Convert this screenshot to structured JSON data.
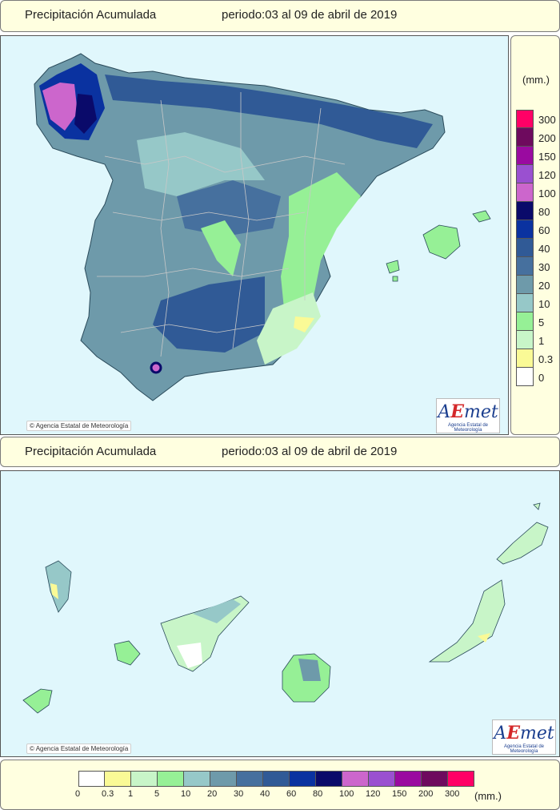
{
  "top_title": {
    "label": "Precipitación Acumulada",
    "period": "periodo:03 al 09 de abril de 2019"
  },
  "canary_title": {
    "label": "Precipitación Acumulada",
    "period": "periodo:03 al 09 de abril de 2019"
  },
  "credit": "Agencia Estatal de Meteorología",
  "logo": {
    "mark_a": "A",
    "mark_e": "E",
    "mark_rest": "met",
    "sub": "Agencia Estatal de Meteorología"
  },
  "legend": {
    "unit": "(mm.)",
    "bins": [
      {
        "label": "300",
        "color": "#ff0066"
      },
      {
        "label": "200",
        "color": "#6e0a5e"
      },
      {
        "label": "150",
        "color": "#9a0aa0"
      },
      {
        "label": "120",
        "color": "#9a50d0"
      },
      {
        "label": "100",
        "color": "#cc66cc"
      },
      {
        "label": "80",
        "color": "#0a0a6a"
      },
      {
        "label": "60",
        "color": "#0a32a0"
      },
      {
        "label": "40",
        "color": "#305a96"
      },
      {
        "label": "30",
        "color": "#46709e"
      },
      {
        "label": "20",
        "color": "#6e9aaa"
      },
      {
        "label": "10",
        "color": "#96c8c8"
      },
      {
        "label": "5",
        "color": "#96f096"
      },
      {
        "label": "1",
        "color": "#c8f5c8"
      },
      {
        "label": "0.3",
        "color": "#fafa96"
      },
      {
        "label": "0",
        "color": "#ffffff"
      }
    ]
  },
  "legend_h": {
    "unit": "(mm.)",
    "labels": [
      "0",
      "0.3",
      "1",
      "5",
      "10",
      "20",
      "30",
      "40",
      "60",
      "80",
      "100",
      "120",
      "150",
      "200",
      "300"
    ],
    "colors": [
      "#ffffff",
      "#fafa96",
      "#c8f5c8",
      "#96f096",
      "#96c8c8",
      "#6e9aaa",
      "#46709e",
      "#305a96",
      "#0a32a0",
      "#0a0a6a",
      "#cc66cc",
      "#9a50d0",
      "#9a0aa0",
      "#6e0a5e",
      "#ff0066"
    ]
  }
}
